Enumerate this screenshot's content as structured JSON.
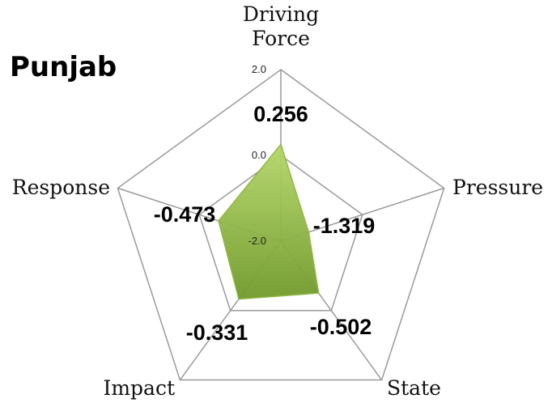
{
  "chart_data": {
    "type": "radar",
    "title": "Punjab",
    "categories": [
      "Driving Force",
      "Pressure",
      "State",
      "Impact",
      "Response"
    ],
    "values": [
      0.256,
      -1.319,
      -0.502,
      -0.331,
      -0.473
    ],
    "color": "#8cb43c",
    "ylim": [
      -2,
      2
    ],
    "yticks": [
      {
        "value": -2,
        "label": "-2.0"
      },
      {
        "value": 0,
        "label": "0.0"
      },
      {
        "value": 2,
        "label": "2.0"
      }
    ],
    "grid": true
  }
}
